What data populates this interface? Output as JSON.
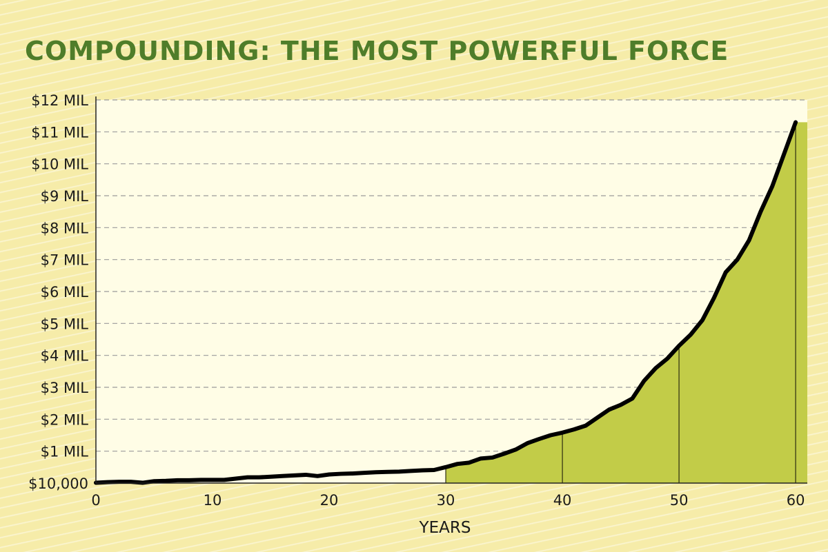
{
  "title": "COMPOUNDING: THE MOST POWERFUL FORCE",
  "chart_data": {
    "type": "area",
    "title": "COMPOUNDING: THE MOST POWERFUL FORCE",
    "xlabel": "YEARS",
    "ylabel": "",
    "xlim": [
      0,
      61
    ],
    "ylim": [
      0,
      12
    ],
    "x_ticks": [
      0,
      10,
      20,
      30,
      40,
      50,
      60
    ],
    "y_ticks": [
      {
        "value": 0,
        "label": "$10,000"
      },
      {
        "value": 1,
        "label": "$1 MIL"
      },
      {
        "value": 2,
        "label": "$2 MIL"
      },
      {
        "value": 3,
        "label": "$3 MIL"
      },
      {
        "value": 4,
        "label": "$4 MIL"
      },
      {
        "value": 5,
        "label": "$5 MIL"
      },
      {
        "value": 6,
        "label": "$6 MIL"
      },
      {
        "value": 7,
        "label": "$7 MIL"
      },
      {
        "value": 8,
        "label": "$8 MIL"
      },
      {
        "value": 9,
        "label": "$9 MIL"
      },
      {
        "value": 10,
        "label": "$10 MIL"
      },
      {
        "value": 11,
        "label": "$11 MIL"
      },
      {
        "value": 12,
        "label": "$12 MIL"
      }
    ],
    "grid": "horizontal dashed",
    "vertical_markers": [
      30,
      40,
      50,
      60
    ],
    "series": [
      {
        "color": "#000000",
        "fill": "#c2cc48",
        "fill_from": 30,
        "x": [
          0,
          1,
          2,
          3,
          4,
          5,
          6,
          7,
          8,
          9,
          10,
          11,
          12,
          13,
          14,
          15,
          16,
          17,
          18,
          19,
          20,
          21,
          22,
          23,
          24,
          25,
          26,
          27,
          28,
          29,
          30,
          31,
          32,
          33,
          34,
          35,
          36,
          37,
          38,
          39,
          40,
          41,
          42,
          43,
          44,
          45,
          46,
          47,
          48,
          49,
          50,
          51,
          52,
          53,
          54,
          55,
          56,
          57,
          58,
          59,
          60,
          61
        ],
        "values": [
          0.01,
          0.03,
          0.04,
          0.04,
          0.01,
          0.06,
          0.07,
          0.09,
          0.09,
          0.1,
          0.1,
          0.1,
          0.14,
          0.18,
          0.18,
          0.2,
          0.22,
          0.24,
          0.26,
          0.22,
          0.27,
          0.29,
          0.3,
          0.32,
          0.34,
          0.35,
          0.36,
          0.38,
          0.4,
          0.41,
          0.5,
          0.6,
          0.64,
          0.77,
          0.8,
          0.92,
          1.05,
          1.25,
          1.38,
          1.5,
          1.58,
          1.68,
          1.8,
          2.05,
          2.3,
          2.45,
          2.65,
          3.2,
          3.6,
          3.9,
          4.3,
          4.65,
          5.1,
          5.8,
          6.6,
          7.0,
          7.6,
          8.5,
          9.3,
          10.3,
          11.3,
          11.3
        ]
      }
    ]
  }
}
